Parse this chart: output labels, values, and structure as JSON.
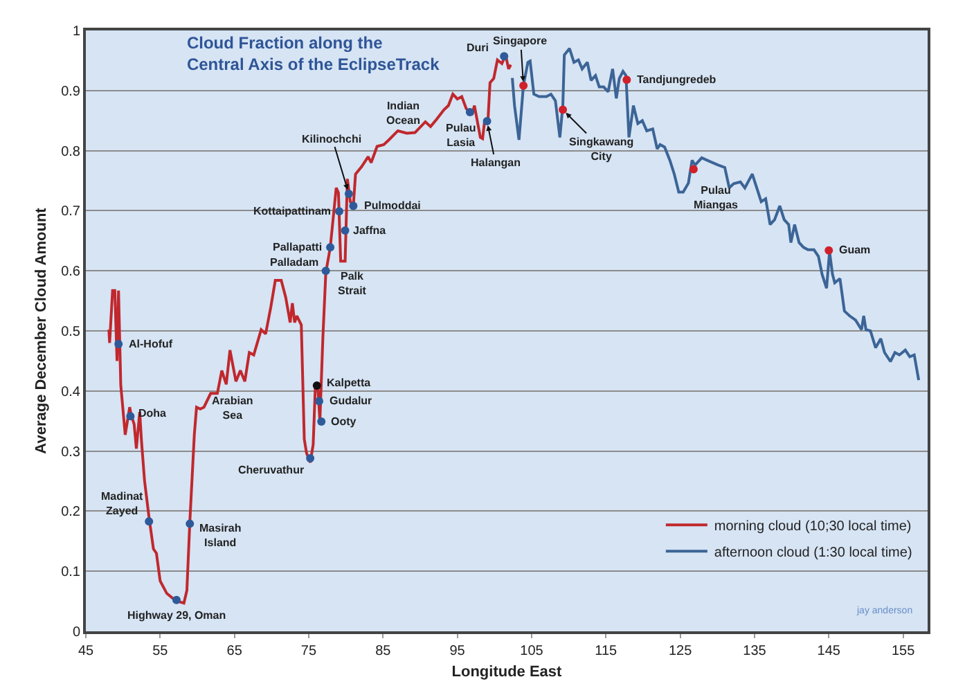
{
  "chart_data": {
    "type": "line",
    "title": "Cloud Fraction along the\nCentral Axis of the EclipseTrack",
    "xlabel": "Longitude East",
    "ylabel": "Average December Cloud Amount",
    "xlim": [
      45,
      158.3
    ],
    "xticks": [
      45,
      55,
      65,
      75,
      85,
      95,
      105,
      115,
      125,
      135,
      145,
      155
    ],
    "ylim": [
      0,
      1
    ],
    "yticks": [
      0,
      0.1,
      0.2,
      0.3,
      0.4,
      0.5,
      0.6,
      0.7,
      0.8,
      0.9,
      1
    ],
    "grid": "y",
    "legend": "bottom right",
    "marker": "none",
    "line_style": "solid",
    "series": [
      {
        "name": "morning cloud (10;30 local time)",
        "color": "#c0282d",
        "x": [
          48.1,
          48.2,
          48.6,
          48.9,
          49.2,
          49.4,
          49.7,
          50.3,
          50.9,
          51.1,
          51.5,
          51.8,
          52.25,
          52.5,
          52.9,
          53.5,
          54.1,
          54.5,
          55.0,
          55.9,
          56.9,
          57.6,
          58.2,
          58.6,
          59.0,
          59.6,
          59.9,
          60.4,
          60.9,
          61.8,
          62.7,
          63.3,
          63.9,
          64.4,
          65.2,
          65.8,
          66.4,
          67.0,
          67.6,
          68.6,
          69.2,
          69.9,
          70.5,
          71.3,
          71.9,
          72.5,
          72.8,
          73.1,
          73.4,
          74.0,
          74.4,
          74.7,
          75.2,
          75.6,
          75.9,
          76.2,
          76.5,
          76.9,
          77.3,
          77.9,
          78.7,
          79.0,
          79.3,
          79.9,
          80.2,
          80.6,
          81.0,
          81.3,
          82.1,
          83.0,
          83.4,
          84.2,
          85.1,
          85.8,
          87.0,
          88.2,
          89.3,
          90.7,
          91.4,
          92.2,
          93.2,
          93.8,
          94.4,
          95.0,
          95.6,
          96.2,
          96.7,
          97.0,
          97.3,
          98.1,
          98.4,
          98.7,
          99.1,
          99.4,
          99.9,
          100.4,
          101.0,
          101.5,
          101.9,
          102.2
        ],
        "values": [
          0.502,
          0.48,
          0.567,
          0.567,
          0.45,
          0.567,
          0.41,
          0.327,
          0.373,
          0.36,
          0.345,
          0.304,
          0.365,
          0.315,
          0.251,
          0.19,
          0.137,
          0.13,
          0.084,
          0.063,
          0.053,
          0.049,
          0.047,
          0.068,
          0.183,
          0.327,
          0.373,
          0.37,
          0.373,
          0.396,
          0.396,
          0.434,
          0.411,
          0.468,
          0.416,
          0.434,
          0.416,
          0.464,
          0.46,
          0.502,
          0.495,
          0.54,
          0.584,
          0.584,
          0.556,
          0.514,
          0.546,
          0.514,
          0.525,
          0.51,
          0.32,
          0.297,
          0.281,
          0.311,
          0.411,
          0.411,
          0.35,
          0.487,
          0.597,
          0.639,
          0.738,
          0.73,
          0.616,
          0.616,
          0.753,
          0.715,
          0.708,
          0.761,
          0.773,
          0.79,
          0.78,
          0.807,
          0.81,
          0.818,
          0.833,
          0.829,
          0.83,
          0.848,
          0.84,
          0.852,
          0.868,
          0.875,
          0.894,
          0.886,
          0.89,
          0.87,
          0.864,
          0.86,
          0.875,
          0.822,
          0.82,
          0.852,
          0.845,
          0.913,
          0.92,
          0.951,
          0.945,
          0.959,
          0.936,
          0.943
        ]
      },
      {
        "name": "afternoon cloud (1:30 local time)",
        "color": "#3c6496",
        "x": [
          102.4,
          102.7,
          103.3,
          103.9,
          104.5,
          104.8,
          105.3,
          106.0,
          107.0,
          107.6,
          108.2,
          108.8,
          109.2,
          109.4,
          110.1,
          110.7,
          111.3,
          111.8,
          112.5,
          113.0,
          113.6,
          114.1,
          114.7,
          115.3,
          115.9,
          116.4,
          116.8,
          117.3,
          117.7,
          118.1,
          118.7,
          119.3,
          119.9,
          120.5,
          121.3,
          121.9,
          122.3,
          122.9,
          123.6,
          124.2,
          124.8,
          125.4,
          126.1,
          126.6,
          127.0,
          127.9,
          128.8,
          130.1,
          131.0,
          131.6,
          132.2,
          133.1,
          133.7,
          134.7,
          135.3,
          135.9,
          136.5,
          137.1,
          137.7,
          138.4,
          139.0,
          139.6,
          139.9,
          140.4,
          141.0,
          141.6,
          142.2,
          143.0,
          143.6,
          144.1,
          144.7,
          145.1,
          145.5,
          145.8,
          146.5,
          147.1,
          147.8,
          148.6,
          149.4,
          149.7,
          150.0,
          150.6,
          151.3,
          152.0,
          152.5,
          153.3,
          153.9,
          154.5,
          155.3,
          155.9,
          156.5,
          157.1
        ],
        "values": [
          0.921,
          0.875,
          0.818,
          0.909,
          0.947,
          0.949,
          0.894,
          0.89,
          0.89,
          0.894,
          0.883,
          0.822,
          0.875,
          0.959,
          0.97,
          0.947,
          0.951,
          0.936,
          0.947,
          0.917,
          0.925,
          0.906,
          0.906,
          0.898,
          0.936,
          0.887,
          0.92,
          0.932,
          0.925,
          0.822,
          0.875,
          0.845,
          0.85,
          0.833,
          0.836,
          0.803,
          0.81,
          0.806,
          0.784,
          0.761,
          0.731,
          0.731,
          0.746,
          0.784,
          0.776,
          0.788,
          0.783,
          0.776,
          0.772,
          0.738,
          0.745,
          0.748,
          0.738,
          0.761,
          0.738,
          0.715,
          0.72,
          0.677,
          0.685,
          0.708,
          0.685,
          0.677,
          0.647,
          0.677,
          0.647,
          0.639,
          0.635,
          0.635,
          0.624,
          0.594,
          0.571,
          0.632,
          0.594,
          0.58,
          0.587,
          0.533,
          0.525,
          0.518,
          0.502,
          0.525,
          0.502,
          0.5,
          0.472,
          0.487,
          0.464,
          0.449,
          0.464,
          0.46,
          0.468,
          0.457,
          0.46,
          0.418
        ]
      },
      {
        "type": "scatter",
        "marker": "circle",
        "x": [
          49.4,
          51.0,
          53.5,
          57.2,
          59.0,
          75.2,
          76.1,
          76.4,
          76.7,
          77.3,
          77.9,
          79.9,
          79.1,
          81.0,
          80.4,
          96.7,
          99.0,
          101.3,
          103.9,
          109.2,
          117.8,
          126.8,
          145.0
        ],
        "values": [
          0.478,
          0.358,
          0.183,
          0.052,
          0.179,
          0.288,
          0.409,
          0.383,
          0.349,
          0.6,
          0.639,
          0.667,
          0.699,
          0.708,
          0.728,
          0.864,
          0.849,
          0.957,
          0.908,
          0.868,
          0.918,
          0.769,
          0.634
        ],
        "colors": [
          "#2e5a9a",
          "#2e5a9a",
          "#2e5a9a",
          "#2e5a9a",
          "#2e5a9a",
          "#2e5a9a",
          "#111111",
          "#2e5a9a",
          "#2e5a9a",
          "#2e5a9a",
          "#2e5a9a",
          "#2e5a9a",
          "#2e5a9a",
          "#2e5a9a",
          "#2e5a9a",
          "#2e5a9a",
          "#2e5a9a",
          "#2e5a9a",
          "#d0202a",
          "#d0202a",
          "#d0202a",
          "#d0202a",
          "#d0202a"
        ]
      }
    ],
    "annotations": [
      {
        "text": "Al-Hofuf",
        "x": 49.4,
        "y": 0.478
      },
      {
        "text": "Doha",
        "x": 51.0,
        "y": 0.358
      },
      {
        "text": "Madinat\nZayed",
        "x": 53.5,
        "y": 0.183
      },
      {
        "text": "Highway 29, Oman",
        "x": 57.2,
        "y": 0.052
      },
      {
        "text": "Masirah\nIsland",
        "x": 59.0,
        "y": 0.179
      },
      "Arabian\nSea",
      {
        "text": "Cheruvathur",
        "x": 75.2,
        "y": 0.288
      },
      {
        "text": "Kalpetta",
        "x": 76.1,
        "y": 0.409
      },
      {
        "text": "Gudalur",
        "x": 76.4,
        "y": 0.383
      },
      {
        "text": "Ooty",
        "x": 76.7,
        "y": 0.349
      },
      {
        "text": "Palladam",
        "x": 77.3,
        "y": 0.6
      },
      {
        "text": "Palk\nStrait",
        "x": 79.6,
        "y": 0.616
      },
      {
        "text": "Pallapatti",
        "x": 77.9,
        "y": 0.639
      },
      {
        "text": "Jaffna",
        "x": 79.9,
        "y": 0.667
      },
      {
        "text": "Kottaipattinam",
        "x": 79.1,
        "y": 0.699
      },
      {
        "text": "Pulmoddai",
        "x": 81.0,
        "y": 0.708
      },
      {
        "text": "Kilinochchi",
        "x": 80.4,
        "y": 0.728
      },
      "Indian\nOcean",
      {
        "text": "Pulau\nLasia",
        "x": 96.7,
        "y": 0.864
      },
      {
        "text": "Halangan",
        "x": 99.0,
        "y": 0.849
      },
      {
        "text": "Duri",
        "x": 101.3,
        "y": 0.957
      },
      {
        "text": "Singapore",
        "x": 103.9,
        "y": 0.908
      },
      {
        "text": "Singkawang\nCity",
        "x": 109.2,
        "y": 0.868
      },
      {
        "text": "Tandjungredeb",
        "x": 117.8,
        "y": 0.918
      },
      {
        "text": "Pulau\nMiangas",
        "x": 126.8,
        "y": 0.769
      },
      {
        "text": "Guam",
        "x": 145.0,
        "y": 0.634
      },
      "jay anderson"
    ]
  }
}
